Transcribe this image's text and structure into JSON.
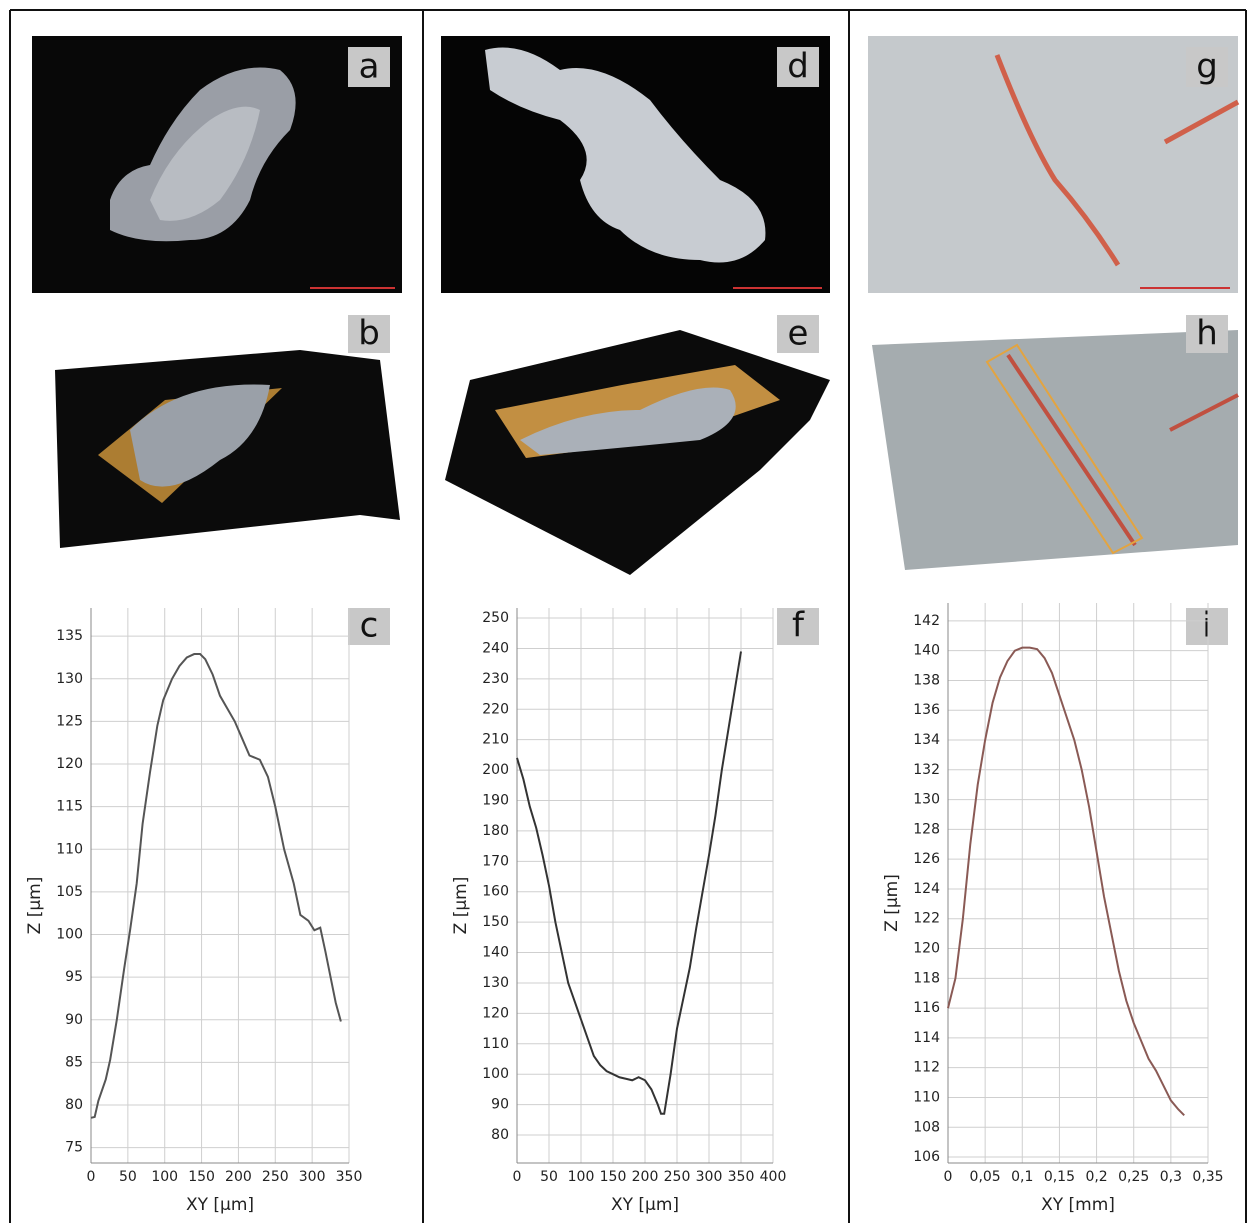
{
  "panels": {
    "labels": [
      "a",
      "b",
      "c",
      "d",
      "e",
      "f",
      "g",
      "h",
      "i"
    ]
  },
  "chart_data": [
    {
      "type": "line",
      "xlabel": "XY [µm]",
      "ylabel": "Z [µm]",
      "grid": true,
      "x": [
        0,
        5,
        10,
        20,
        26,
        35,
        45,
        53,
        62,
        70,
        80,
        90,
        98,
        110,
        120,
        130,
        140,
        148,
        155,
        165,
        175,
        185,
        195,
        205,
        215,
        229,
        240,
        250,
        262,
        275,
        284,
        295,
        303,
        311,
        318,
        325,
        332,
        339
      ],
      "series": [
        {
          "color": "#555555",
          "values": [
            78.5,
            78.6,
            80.5,
            83,
            85.3,
            90,
            96,
            100.5,
            106,
            113,
            119,
            124.5,
            127.5,
            130,
            131.5,
            132.5,
            132.9,
            132.9,
            132.3,
            130.5,
            128,
            126.5,
            125,
            123,
            121,
            120.5,
            118.5,
            115,
            110,
            106,
            102.3,
            101.6,
            100.5,
            100.8,
            98,
            95,
            92,
            89.8
          ]
        }
      ],
      "xlim": [
        0,
        350
      ],
      "ylim": [
        73.2,
        138.3
      ],
      "xticks": [
        0,
        50,
        100,
        150,
        200,
        250,
        300,
        350
      ],
      "yticks": [
        75,
        80,
        85,
        90,
        95,
        100,
        105,
        110,
        115,
        120,
        125,
        130,
        135
      ]
    },
    {
      "type": "line",
      "xlabel": "XY [µm]",
      "ylabel": "Z [µm]",
      "grid": true,
      "x": [
        0,
        10,
        20,
        30,
        40,
        50,
        60,
        70,
        80,
        90,
        100,
        110,
        120,
        130,
        140,
        150,
        160,
        170,
        180,
        190,
        200,
        210,
        220,
        225,
        230,
        240,
        250,
        260,
        270,
        280,
        290,
        300,
        310,
        320,
        330,
        340,
        350
      ],
      "series": [
        {
          "color": "#333333",
          "values": [
            204,
            197,
            188,
            181,
            172,
            162,
            150,
            140,
            130,
            124,
            118,
            112,
            106,
            103,
            101,
            100,
            99,
            98.5,
            98,
            99,
            98,
            95,
            90,
            87,
            87,
            100,
            115,
            125,
            135,
            148,
            160,
            172,
            185,
            200,
            213,
            226,
            239
          ]
        }
      ],
      "xlim": [
        0,
        400
      ],
      "ylim": [
        70.8,
        253.3
      ],
      "xticks": [
        0,
        50,
        100,
        150,
        200,
        250,
        300,
        350,
        400
      ],
      "yticks": [
        80,
        90,
        100,
        110,
        120,
        130,
        140,
        150,
        160,
        170,
        180,
        190,
        200,
        210,
        220,
        230,
        240,
        250
      ]
    },
    {
      "type": "line",
      "xlabel": "XY [mm]",
      "ylabel": "Z [µm]",
      "grid": true,
      "x": [
        0,
        0.01,
        0.02,
        0.03,
        0.04,
        0.05,
        0.06,
        0.07,
        0.08,
        0.09,
        0.1,
        0.11,
        0.12,
        0.13,
        0.14,
        0.15,
        0.16,
        0.17,
        0.18,
        0.19,
        0.2,
        0.21,
        0.22,
        0.23,
        0.24,
        0.25,
        0.26,
        0.27,
        0.28,
        0.29,
        0.3,
        0.31,
        0.318
      ],
      "series": [
        {
          "color": "#8a5a55",
          "values": [
            116,
            118,
            122,
            127,
            131,
            134,
            136.5,
            138.2,
            139.3,
            140,
            140.2,
            140.2,
            140.1,
            139.5,
            138.5,
            137,
            135.5,
            134,
            132,
            129.5,
            126.5,
            123.5,
            121,
            118.5,
            116.5,
            115,
            113.8,
            112.6,
            111.8,
            110.8,
            109.8,
            109.2,
            108.8
          ]
        }
      ],
      "xlim": [
        0,
        0.35
      ],
      "ylim": [
        105.6,
        143.2
      ],
      "xticks": [
        0,
        {
          "value": 0.05,
          "label": "0,05"
        },
        {
          "value": 0.1,
          "label": "0,1"
        },
        {
          "value": 0.15,
          "label": "0,15"
        },
        {
          "value": 0.2,
          "label": "0,2"
        },
        {
          "value": 0.25,
          "label": "0,25"
        },
        {
          "value": 0.3,
          "label": "0,3"
        },
        {
          "value": 0.35,
          "label": "0,35"
        }
      ],
      "yticks": [
        106,
        108,
        110,
        112,
        114,
        116,
        118,
        120,
        122,
        124,
        126,
        128,
        130,
        132,
        134,
        136,
        138,
        140,
        142
      ]
    }
  ]
}
